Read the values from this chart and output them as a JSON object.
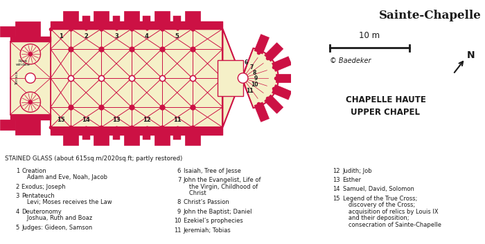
{
  "title": "Sainte-Chapelle",
  "bg_color": "#FFFFFF",
  "floor_fill": "#F5F0C8",
  "wall_color": "#CC1144",
  "scale_label": "10 m",
  "copyright": "© Baedeker",
  "north": "N",
  "chapelle_haute": "CHAPELLE HAUTE",
  "upper_chapel": "UPPER CHAPEL",
  "stained_glass_header": "STAINED GLASS (about 615sq.m/2020sq.ft; partly restored)",
  "col1": [
    [
      "1",
      "Creation",
      "   Adam and Eve, Noah, Jacob"
    ],
    [
      "2",
      "Exodus; Joseph",
      ""
    ],
    [
      "3",
      "Pentateuch",
      "   Levi; Moses receives the Law"
    ],
    [
      "4",
      "Deuteronomy",
      "   Joshua, Ruth and Boaz"
    ],
    [
      "5",
      "Judges: Gideon, Samson",
      ""
    ]
  ],
  "col2": [
    [
      "6",
      "Isaiah, Tree of Jesse",
      ""
    ],
    [
      "7",
      "John the Evangelist, Life of",
      "   the Virgin, Childhood of",
      "   Christ"
    ],
    [
      "8",
      "Christ’s Passion",
      ""
    ],
    [
      "9",
      "John the Baptist; Daniel",
      ""
    ],
    [
      "10",
      "Ezekiel’s prophecies",
      ""
    ],
    [
      "11",
      "Jeremiah; Tobias",
      ""
    ]
  ],
  "col3": [
    [
      "12",
      "Judith; Job",
      ""
    ],
    [
      "13",
      "Esther",
      ""
    ],
    [
      "14",
      "Samuel, David, Solomon",
      ""
    ],
    [
      "15",
      "Legend of the True Cross;",
      "   discovery of the Cross;",
      "   acquisition of relics by Louis IX",
      "   and their deposition;",
      "   consecration of Sainte-Chapelle"
    ]
  ]
}
